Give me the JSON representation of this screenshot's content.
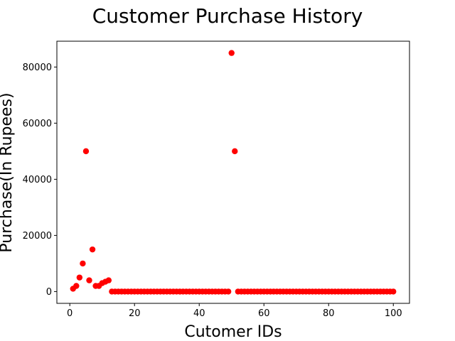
{
  "chart_data": {
    "type": "scatter",
    "title": "Customer Purchase History",
    "xlabel": "Cutomer IDs",
    "ylabel": "Purchase(In Rupees)",
    "xlim": [
      -4,
      105
    ],
    "ylim": [
      -4200,
      89200
    ],
    "xticks": [
      0,
      20,
      40,
      60,
      80,
      100
    ],
    "yticks": [
      0,
      20000,
      40000,
      60000,
      80000
    ],
    "grid": false,
    "marker_color": "#ff0000",
    "x": [
      1,
      2,
      3,
      4,
      5,
      6,
      7,
      8,
      9,
      10,
      11,
      12,
      13,
      14,
      15,
      16,
      17,
      18,
      19,
      20,
      21,
      22,
      23,
      24,
      25,
      26,
      27,
      28,
      29,
      30,
      31,
      32,
      33,
      34,
      35,
      36,
      37,
      38,
      39,
      40,
      41,
      42,
      43,
      44,
      45,
      46,
      47,
      48,
      49,
      50,
      51,
      52,
      53,
      54,
      55,
      56,
      57,
      58,
      59,
      60,
      61,
      62,
      63,
      64,
      65,
      66,
      67,
      68,
      69,
      70,
      71,
      72,
      73,
      74,
      75,
      76,
      77,
      78,
      79,
      80,
      81,
      82,
      83,
      84,
      85,
      86,
      87,
      88,
      89,
      90,
      91,
      92,
      93,
      94,
      95,
      96,
      97,
      98,
      99,
      100
    ],
    "y": [
      1000,
      2000,
      5000,
      10000,
      50000,
      4000,
      15000,
      2000,
      2000,
      3000,
      3500,
      4000,
      0,
      0,
      0,
      0,
      0,
      0,
      0,
      0,
      0,
      0,
      0,
      0,
      0,
      0,
      0,
      0,
      0,
      0,
      0,
      0,
      0,
      0,
      0,
      0,
      0,
      0,
      0,
      0,
      0,
      0,
      0,
      0,
      0,
      0,
      0,
      0,
      0,
      85000,
      50000,
      0,
      0,
      0,
      0,
      0,
      0,
      0,
      0,
      0,
      0,
      0,
      0,
      0,
      0,
      0,
      0,
      0,
      0,
      0,
      0,
      0,
      0,
      0,
      0,
      0,
      0,
      0,
      0,
      0,
      0,
      0,
      0,
      0,
      0,
      0,
      0,
      0,
      0,
      0,
      0,
      0,
      0,
      0,
      0,
      0,
      0,
      0,
      0,
      0
    ]
  }
}
